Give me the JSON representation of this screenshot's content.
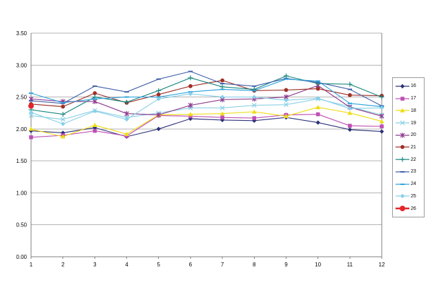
{
  "chart_data": {
    "type": "line",
    "title": "",
    "xlabel": "",
    "ylabel": "",
    "x": [
      1,
      2,
      3,
      4,
      5,
      6,
      7,
      8,
      9,
      10,
      11,
      12
    ],
    "x_tick_labels": [
      "1",
      "2",
      "3",
      "4",
      "5",
      "6",
      "7",
      "8",
      "9",
      "10",
      "11",
      "12"
    ],
    "y_tick_labels": [
      "0.00",
      "0.50",
      "1.00",
      "1.50",
      "2.00",
      "2.50",
      "3.00",
      "3.50"
    ],
    "ylim": [
      0.0,
      3.5
    ],
    "y_tick_step": 0.5,
    "grid": true,
    "legend_position": "right",
    "axis_color": "#7f7f7f",
    "grid_color": "#b3b3b3",
    "series": [
      {
        "name": "16",
        "color": "#2c3277",
        "marker": "diamond",
        "values": [
          1.97,
          1.94,
          2.02,
          1.88,
          2.0,
          2.16,
          2.14,
          2.13,
          2.18,
          2.1,
          1.99,
          1.96
        ]
      },
      {
        "name": "17",
        "color": "#be4fb5",
        "marker": "square",
        "values": [
          1.87,
          1.9,
          1.97,
          1.89,
          2.21,
          2.2,
          2.18,
          2.17,
          2.22,
          2.23,
          2.05,
          2.04
        ]
      },
      {
        "name": "18",
        "color": "#efdc16",
        "marker": "triangle",
        "values": [
          2.0,
          1.88,
          2.06,
          1.92,
          2.22,
          2.23,
          2.24,
          2.27,
          2.2,
          2.34,
          2.25,
          2.12
        ]
      },
      {
        "name": "19",
        "color": "#8bd0e4",
        "marker": "x",
        "values": [
          2.21,
          2.15,
          2.29,
          2.18,
          2.25,
          2.33,
          2.33,
          2.37,
          2.38,
          2.47,
          2.35,
          2.22
        ]
      },
      {
        "name": "20",
        "color": "#8e3a8e",
        "marker": "star",
        "values": [
          2.47,
          2.43,
          2.43,
          2.24,
          2.22,
          2.37,
          2.46,
          2.47,
          2.5,
          2.68,
          2.34,
          2.2
        ]
      },
      {
        "name": "21",
        "color": "#a03028",
        "marker": "circle",
        "values": [
          2.39,
          2.35,
          2.56,
          2.41,
          2.54,
          2.67,
          2.76,
          2.6,
          2.61,
          2.63,
          2.53,
          2.52
        ]
      },
      {
        "name": "22",
        "color": "#17867f",
        "marker": "plus",
        "values": [
          2.3,
          2.23,
          2.5,
          2.42,
          2.6,
          2.8,
          2.66,
          2.62,
          2.83,
          2.71,
          2.7,
          2.5
        ]
      },
      {
        "name": "23",
        "color": "#3e5ea9",
        "marker": "dash",
        "values": [
          2.44,
          2.4,
          2.67,
          2.58,
          2.78,
          2.9,
          2.71,
          2.67,
          2.79,
          2.73,
          2.62,
          2.36
        ]
      },
      {
        "name": "24",
        "color": "#2fa3dc",
        "marker": "dash",
        "values": [
          2.56,
          2.41,
          2.47,
          2.5,
          2.5,
          2.58,
          2.62,
          2.6,
          2.78,
          2.75,
          2.4,
          2.35
        ]
      },
      {
        "name": "25",
        "color": "#86cfe8",
        "marker": "diamond",
        "values": [
          2.26,
          2.08,
          2.28,
          2.15,
          2.47,
          2.55,
          2.5,
          2.5,
          2.45,
          2.48,
          2.32,
          2.33
        ]
      },
      {
        "name": "26",
        "color": "#e3262a",
        "marker": "circle",
        "thick": true,
        "values": [
          2.36,
          null,
          null,
          null,
          null,
          null,
          null,
          null,
          null,
          null,
          null,
          null
        ]
      }
    ]
  }
}
